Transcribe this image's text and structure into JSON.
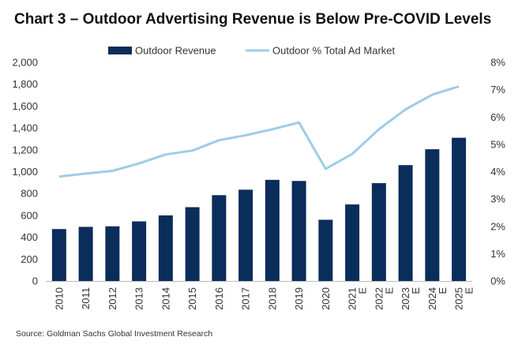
{
  "title": "Chart 3 – Outdoor Advertising Revenue is Below Pre-COVID Levels",
  "source": "Source: Goldman Sachs Global Investment Research",
  "colors": {
    "bar": "#0b2d5b",
    "line": "#9fcbe8"
  },
  "chart_data": {
    "type": "bar",
    "categories": [
      "2010",
      "2011",
      "2012",
      "2013",
      "2014",
      "2015",
      "2016",
      "2017",
      "2018",
      "2019",
      "2020",
      "2021 E",
      "2022 E",
      "2023 E",
      "2024 E",
      "2025 E"
    ],
    "series": [
      {
        "name": "Outdoor Revenue",
        "type": "bar",
        "axis": "left",
        "values": [
          475,
          495,
          500,
          545,
          600,
          675,
          785,
          835,
          925,
          915,
          560,
          700,
          895,
          1060,
          1205,
          1310
        ]
      },
      {
        "name": "Outdoor % Total Ad Market",
        "type": "line",
        "axis": "right",
        "values": [
          3.82,
          3.93,
          4.03,
          4.3,
          4.63,
          4.77,
          5.15,
          5.33,
          5.55,
          5.8,
          4.1,
          4.65,
          5.55,
          6.28,
          6.82,
          7.12
        ]
      }
    ],
    "y_left": {
      "min": 0,
      "max": 2000,
      "step": 200,
      "ticks": [
        "0",
        "200",
        "400",
        "600",
        "800",
        "1,000",
        "1,200",
        "1,400",
        "1,600",
        "1,800",
        "2,000"
      ]
    },
    "y_right": {
      "min": 0,
      "max": 8,
      "step": 1,
      "ticks": [
        "0%",
        "1%",
        "2%",
        "3%",
        "4%",
        "5%",
        "6%",
        "7%",
        "8%"
      ]
    },
    "grid": false,
    "legend_position": "top-center"
  }
}
